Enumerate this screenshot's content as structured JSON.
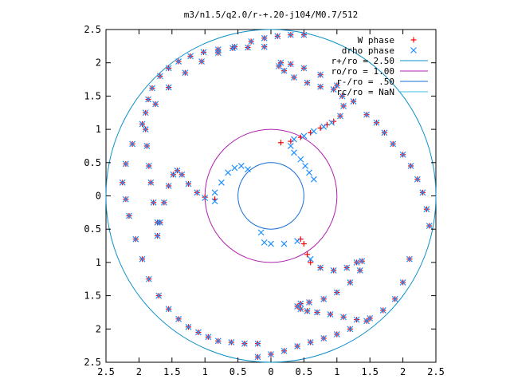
{
  "chart_data": {
    "type": "scatter",
    "title": "m3/n1.5/q2.0/r-+.20-j104/M0.7/512",
    "xlabel": "",
    "ylabel": "",
    "xlim": [
      -2.5,
      2.5
    ],
    "ylim": [
      -2.5,
      2.5
    ],
    "x_ticks": [
      -2.5,
      -2,
      -1.5,
      -1,
      -0.5,
      0,
      0.5,
      1,
      1.5,
      2,
      2.5
    ],
    "x_tick_labels": [
      "2.5",
      "2",
      "1.5",
      "1",
      "0.5",
      "0",
      "0.5",
      "1",
      "1.5",
      "2",
      "2.5"
    ],
    "y_ticks": [
      2.5,
      2,
      1.5,
      1,
      0.5,
      0,
      -0.5,
      -1,
      -1.5,
      -2,
      -2.5
    ],
    "y_tick_labels": [
      "2.5",
      "2",
      "1.5",
      "1",
      "0.5",
      "0",
      "0.5",
      "1",
      "1.5",
      "2",
      "2.5"
    ],
    "grid": false,
    "legend_position": "top-right",
    "series": [
      {
        "name": "W phase",
        "marker": "plus",
        "color": "#ff0000",
        "arms": [
          {
            "x": [
              0.15,
              0.3,
              0.45,
              0.6,
              0.75,
              0.85,
              0.95,
              1.05,
              1.1,
              1.08,
              0.95,
              0.75,
              0.55,
              0.35,
              0.2,
              0.12,
              0.15,
              0.3,
              0.5,
              0.75,
              1.0,
              1.25,
              1.45,
              1.6,
              1.72,
              1.85,
              2.0,
              2.12,
              2.22,
              2.3,
              2.36,
              2.4
            ],
            "y": [
              0.8,
              0.82,
              0.88,
              0.95,
              1.02,
              1.07,
              1.12,
              1.2,
              1.35,
              1.5,
              1.6,
              1.64,
              1.7,
              1.78,
              1.88,
              1.95,
              2.0,
              1.98,
              1.92,
              1.82,
              1.66,
              1.42,
              1.22,
              1.1,
              0.95,
              0.78,
              0.62,
              0.45,
              0.25,
              0.05,
              -0.2,
              -0.45
            ]
          },
          {
            "x": [
              -0.85,
              -1.0,
              -1.12,
              -1.25,
              -1.35,
              -1.42,
              -1.48,
              -1.55,
              -1.62,
              -1.68,
              -1.72,
              -1.72,
              -1.78,
              -1.82,
              -1.85,
              -1.88,
              -1.9,
              -1.9,
              -1.86,
              -1.8,
              -1.68,
              -1.55,
              -1.4,
              -1.22,
              -1.02,
              -0.8,
              -0.58,
              -0.35,
              -0.1
            ],
            "y": [
              -0.05,
              -0.02,
              0.05,
              0.18,
              0.32,
              0.38,
              0.32,
              0.15,
              -0.1,
              -0.4,
              -0.6,
              -0.4,
              -0.1,
              0.2,
              0.45,
              0.75,
              1.0,
              1.25,
              1.45,
              1.62,
              1.8,
              1.92,
              2.02,
              2.1,
              2.16,
              2.2,
              2.22,
              2.23,
              2.24
            ]
          },
          {
            "x": [
              0.45,
              0.5,
              0.55,
              0.6,
              0.75,
              0.95,
              1.15,
              1.3,
              1.38,
              1.35,
              1.2,
              1.0,
              0.8,
              0.58,
              0.45,
              0.4,
              0.45,
              0.55,
              0.7,
              0.9,
              1.1,
              1.3,
              1.5,
              1.7,
              1.88,
              2.0,
              2.1
            ],
            "y": [
              -0.65,
              -0.72,
              -0.88,
              -1.0,
              -1.08,
              -1.12,
              -1.08,
              -1.0,
              -0.98,
              -1.12,
              -1.3,
              -1.45,
              -1.55,
              -1.6,
              -1.62,
              -1.66,
              -1.7,
              -1.73,
              -1.75,
              -1.78,
              -1.82,
              -1.86,
              -1.84,
              -1.72,
              -1.55,
              -1.3,
              -0.95
            ]
          },
          {
            "x": [
              -0.2,
              0.0,
              0.2,
              0.4,
              0.6,
              0.8,
              1.0,
              1.2,
              1.45
            ],
            "y": [
              -2.42,
              -2.38,
              -2.33,
              -2.26,
              -2.2,
              -2.14,
              -2.08,
              -2.0,
              -1.88
            ]
          },
          {
            "x": [
              -2.2,
              -2.15,
              -2.05,
              -1.95,
              -1.85,
              -1.7,
              -1.55,
              -1.4,
              -1.25,
              -1.1,
              -0.95,
              -0.8,
              -0.6,
              -0.4,
              -0.2
            ],
            "y": [
              -0.05,
              -0.3,
              -0.65,
              -0.95,
              -1.25,
              -1.5,
              -1.7,
              -1.85,
              -1.97,
              -2.05,
              -2.12,
              -2.18,
              -2.2,
              -2.22,
              -2.22
            ]
          },
          {
            "x": [
              0.5,
              0.3,
              0.1,
              -0.1,
              -0.3,
              -0.55,
              -0.8,
              -1.05,
              -1.3,
              -1.55,
              -1.75,
              -1.95,
              -2.1,
              -2.2,
              -2.25
            ],
            "y": [
              2.42,
              2.42,
              2.4,
              2.37,
              2.32,
              2.24,
              2.15,
              2.02,
              1.85,
              1.63,
              1.38,
              1.08,
              0.78,
              0.48,
              0.2
            ]
          }
        ]
      },
      {
        "name": "drho phase",
        "marker": "cross",
        "color": "#1e90ff",
        "arms": [
          {
            "x": [
              0.35,
              0.5,
              0.65,
              0.8,
              0.92,
              1.05,
              1.1,
              1.08,
              0.95,
              0.75,
              0.55,
              0.35,
              0.2,
              0.12,
              0.15,
              0.3,
              0.5,
              0.75,
              1.0,
              1.25,
              1.45,
              1.6,
              1.72,
              1.85,
              2.0,
              2.12,
              2.22,
              2.3,
              2.36,
              2.4
            ],
            "y": [
              0.85,
              0.9,
              0.97,
              1.04,
              1.1,
              1.2,
              1.35,
              1.5,
              1.6,
              1.64,
              1.7,
              1.78,
              1.88,
              1.95,
              2.0,
              1.98,
              1.92,
              1.82,
              1.66,
              1.42,
              1.22,
              1.1,
              0.95,
              0.78,
              0.62,
              0.45,
              0.25,
              0.05,
              -0.2,
              -0.45
            ]
          },
          {
            "x": [
              -0.85,
              -1.0,
              -1.12,
              -1.25,
              -1.35,
              -1.42,
              -1.48,
              -1.55,
              -1.62,
              -1.68,
              -1.72,
              -1.72,
              -1.78,
              -1.82,
              -1.85,
              -1.88,
              -1.9,
              -1.9,
              -1.86,
              -1.8,
              -1.68,
              -1.55,
              -1.4,
              -1.22,
              -1.02,
              -0.8,
              -0.58,
              -0.35,
              -0.1
            ],
            "y": [
              -0.08,
              -0.03,
              0.05,
              0.18,
              0.32,
              0.38,
              0.32,
              0.15,
              -0.1,
              -0.4,
              -0.6,
              -0.4,
              -0.1,
              0.2,
              0.45,
              0.75,
              1.0,
              1.25,
              1.45,
              1.62,
              1.8,
              1.92,
              2.02,
              2.1,
              2.16,
              2.2,
              2.22,
              2.23,
              2.24
            ]
          },
          {
            "x": [
              -0.15,
              -0.1,
              0.0,
              0.2,
              0.4,
              0.6,
              0.75,
              0.95,
              1.15,
              1.3,
              1.38,
              1.35,
              1.2,
              1.0,
              0.8,
              0.58,
              0.45,
              0.4,
              0.45,
              0.55,
              0.7,
              0.9,
              1.1,
              1.3,
              1.5,
              1.7,
              1.88,
              2.0,
              2.1
            ],
            "y": [
              -0.55,
              -0.7,
              -0.72,
              -0.72,
              -0.68,
              -0.95,
              -1.08,
              -1.12,
              -1.08,
              -1.0,
              -0.98,
              -1.12,
              -1.3,
              -1.45,
              -1.55,
              -1.6,
              -1.62,
              -1.66,
              -1.7,
              -1.73,
              -1.75,
              -1.78,
              -1.82,
              -1.86,
              -1.84,
              -1.72,
              -1.55,
              -1.3,
              -0.95
            ]
          },
          {
            "x": [
              -0.85,
              -0.75,
              -0.65,
              -0.55,
              -0.45,
              -0.35
            ],
            "y": [
              0.05,
              0.2,
              0.35,
              0.42,
              0.45,
              0.4
            ]
          },
          {
            "x": [
              0.3,
              0.35,
              0.45,
              0.52,
              0.58,
              0.65
            ],
            "y": [
              0.75,
              0.65,
              0.55,
              0.45,
              0.35,
              0.25
            ]
          },
          {
            "x": [
              -0.2,
              0.0,
              0.2,
              0.4,
              0.6,
              0.8,
              1.0,
              1.2,
              1.45
            ],
            "y": [
              -2.42,
              -2.38,
              -2.33,
              -2.26,
              -2.2,
              -2.14,
              -2.08,
              -2.0,
              -1.88
            ]
          },
          {
            "x": [
              -2.2,
              -2.15,
              -2.05,
              -1.95,
              -1.85,
              -1.7,
              -1.55,
              -1.4,
              -1.25,
              -1.1,
              -0.95,
              -0.8,
              -0.6,
              -0.4,
              -0.2
            ],
            "y": [
              -0.05,
              -0.3,
              -0.65,
              -0.95,
              -1.25,
              -1.5,
              -1.7,
              -1.85,
              -1.97,
              -2.05,
              -2.12,
              -2.18,
              -2.2,
              -2.22,
              -2.22
            ]
          },
          {
            "x": [
              0.5,
              0.3,
              0.1,
              -0.1,
              -0.3,
              -0.55,
              -0.8,
              -1.05,
              -1.3,
              -1.55,
              -1.75,
              -1.95,
              -2.1,
              -2.2,
              -2.25
            ],
            "y": [
              2.42,
              2.42,
              2.4,
              2.37,
              2.32,
              2.24,
              2.15,
              2.02,
              1.85,
              1.63,
              1.38,
              1.08,
              0.78,
              0.48,
              0.2
            ]
          }
        ]
      }
    ],
    "circles": [
      {
        "label": "r+/ro = 2.50",
        "radius": 2.5,
        "color": "#0a8fc8"
      },
      {
        "label": "ro/ro = 1.00",
        "radius": 1.0,
        "color": "#b020b0"
      },
      {
        "label": "r-/ro = .50",
        "radius": 0.5,
        "color": "#1a6fd8"
      },
      {
        "label": "rc/ro = NaN",
        "radius": null,
        "color": "#40c0e0"
      }
    ]
  }
}
